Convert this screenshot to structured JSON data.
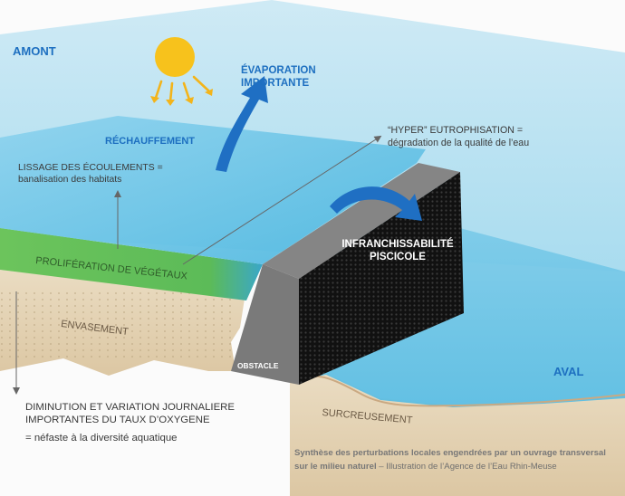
{
  "labels": {
    "amont": "AMONT",
    "aval": "AVAL",
    "evaporation_1": "ÉVAPORATION",
    "evaporation_2": "IMPORTANTE",
    "rechauffement": "RÉCHAUFFEMENT",
    "lissage_1": "LISSAGE DES ÉCOULEMENTS =",
    "lissage_2": "banalisation des habitats",
    "hyper_1": "“HYPER” EUTROPHISATION =",
    "hyper_2": "dégradation de la qualité de l’eau",
    "infranchissabilite_1": "INFRANCHISSABILITÉ",
    "infranchissabilite_2": "PISCICOLE",
    "proliferation": "PROLIFÉRATION DE VÉGÉTAUX",
    "envasement": "ENVASEMENT",
    "obstacle": "OBSTACLE",
    "surcreusement": "SURCREUSEMENT",
    "diminution_1": "DIMINUTION ET VARIATION JOURNALIERE",
    "diminution_2": "IMPORTANTES DU TAUX D’OXYGENE",
    "diminution_3": "= néfaste à la diversité aquatique"
  },
  "caption": {
    "bold_part": "Synthèse des perturbations locales engendrées par un ouvrage transversal sur le milieu naturel",
    "rest": " – Illustration de l’Agence de l’Eau Rhin-Meuse"
  },
  "colors": {
    "water_light": "#a9dcef",
    "water_mid": "#5cbde0",
    "soil": "#e7d6b9",
    "vegetation": "#57b957",
    "obstacle_grey": "#808080",
    "grid_black": "#141414",
    "label_blue": "#1d6fc0",
    "sun": "#f7c21c"
  }
}
